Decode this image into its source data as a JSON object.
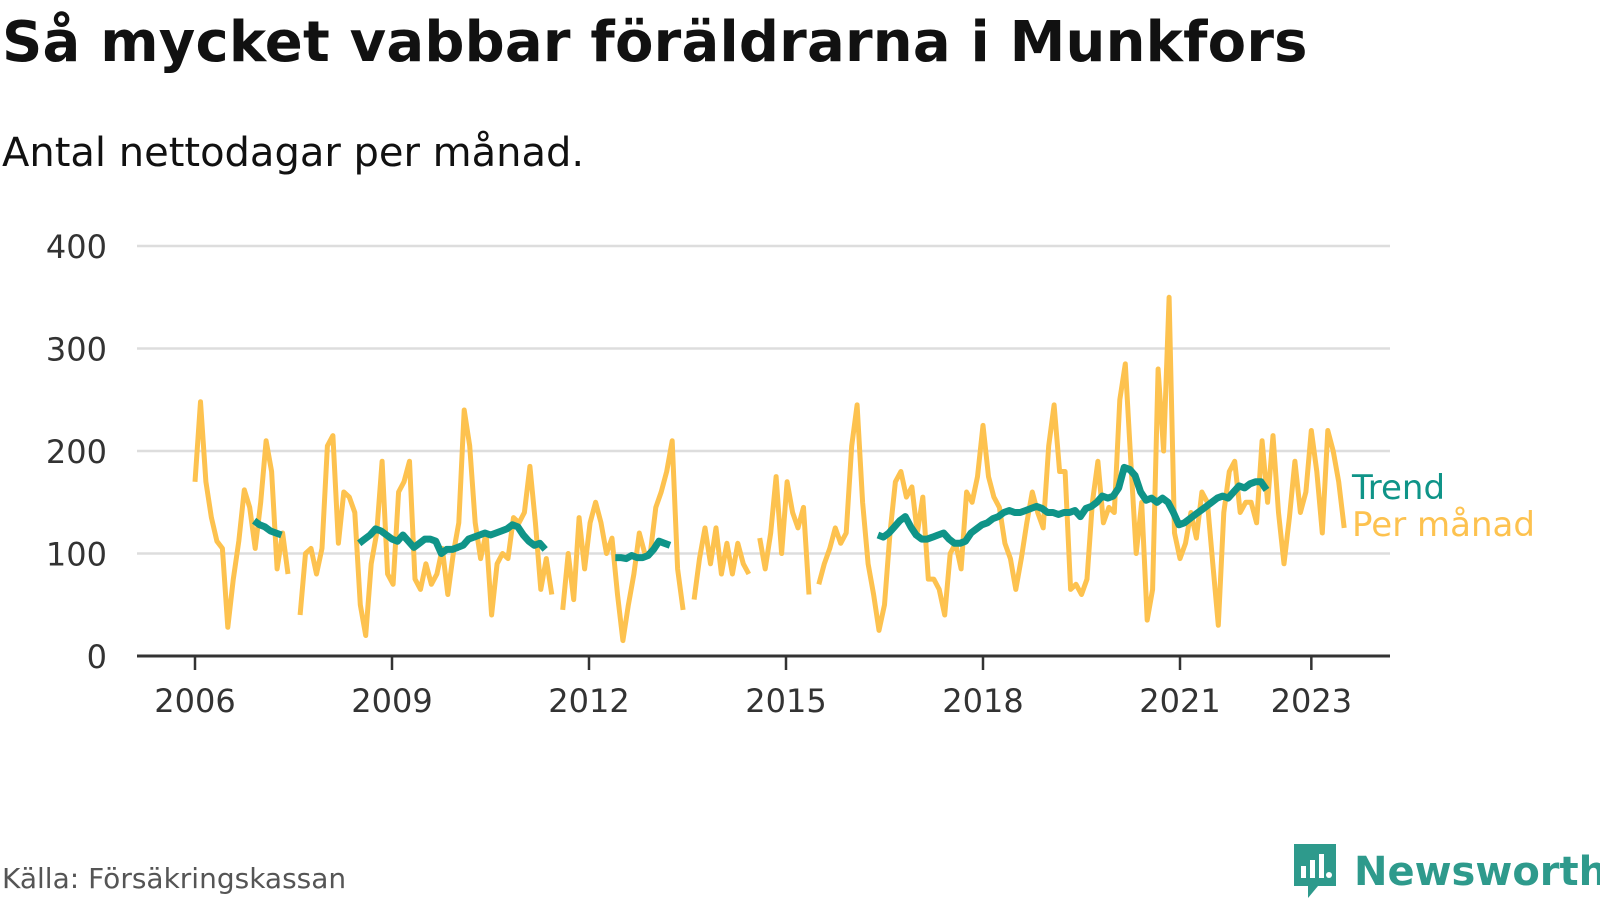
{
  "header": {
    "title": "Så mycket vabbar föräldrarna i Munkfors",
    "subtitle": "Antal nettodagar per månad."
  },
  "footer": {
    "source": "Källa: Försäkringskassan",
    "brand": "Newsworthy"
  },
  "colors": {
    "trend": "#0f9488",
    "monthly": "#fdc24f",
    "grid": "#dddddd",
    "axis": "#333333"
  },
  "chart_data": {
    "type": "line",
    "title": "Så mycket vabbar föräldrarna i Munkfors",
    "subtitle": "Antal nettodagar per månad.",
    "xlabel": "",
    "ylabel": "",
    "xlim": [
      2005.6,
      2024.6
    ],
    "ylim": [
      0,
      400
    ],
    "y_ticks": [
      0,
      100,
      200,
      300,
      400
    ],
    "x_ticks": [
      2006,
      2009,
      2012,
      2015,
      2018,
      2021,
      2023
    ],
    "grid": true,
    "legend": "right",
    "series": [
      {
        "name": "Per månad",
        "color": "#fdc24f",
        "segments": [
          {
            "start": 2006.0,
            "values": [
              170,
              248,
              170,
              135,
              112,
              105,
              28,
              75,
              112,
              162,
              145,
              105,
              150,
              210,
              180,
              85,
              120,
              80
            ]
          },
          {
            "start": 2007.6,
            "values": [
              40,
              100,
              105,
              80,
              105,
              205,
              215,
              110,
              160,
              155,
              140,
              50,
              20,
              90,
              120,
              190,
              80,
              70,
              160,
              170,
              190,
              75,
              65,
              90,
              70,
              80,
              105,
              60,
              100,
              130,
              240,
              205,
              130,
              95,
              120,
              40,
              90,
              100,
              95,
              135,
              130,
              140,
              185,
              130,
              65,
              95,
              60
            ]
          },
          {
            "start": 2011.6,
            "values": [
              45,
              100,
              55,
              135,
              85,
              130,
              150,
              130,
              100,
              115,
              60,
              15,
              50,
              80,
              120,
              100,
              100,
              145,
              160,
              180,
              210,
              85,
              45
            ]
          },
          {
            "start": 2013.6,
            "values": [
              55,
              95,
              125,
              90,
              125,
              80,
              110,
              80,
              110,
              90,
              80
            ]
          },
          {
            "start": 2014.6,
            "values": [
              115,
              85,
              120,
              175,
              100,
              170,
              140,
              125,
              145,
              60
            ]
          },
          {
            "start": 2015.5,
            "values": [
              70,
              90,
              105,
              125,
              110,
              120,
              205,
              245,
              150,
              90,
              60,
              25,
              50,
              120,
              170,
              180,
              155,
              165,
              120,
              155,
              75,
              75,
              65,
              40,
              100,
              110,
              85,
              160,
              150,
              175,
              225,
              175,
              155,
              145,
              110,
              95,
              65,
              95,
              130,
              160,
              140,
              125,
              205,
              245,
              180,
              180,
              65,
              70,
              60,
              75,
              150,
              190,
              130,
              145,
              140,
              250,
              285,
              190,
              100,
              150,
              35,
              65,
              280,
              200,
              350,
              120,
              95,
              110,
              140,
              115,
              160,
              150,
              90,
              30,
              140,
              180,
              190,
              140,
              150,
              150,
              130,
              210,
              150,
              215,
              140,
              90,
              135,
              190,
              140,
              160,
              220,
              180,
              120,
              220,
              200,
              170,
              125
            ]
          }
        ]
      },
      {
        "name": "Trend",
        "color": "#0f9488",
        "segments": [
          {
            "start": 2006.9,
            "values": [
              132,
              128,
              126,
              122,
              120,
              118
            ]
          },
          {
            "start": 2008.5,
            "values": [
              110,
              114,
              118,
              124,
              122,
              118,
              114,
              112,
              118,
              112,
              106,
              110,
              114,
              114,
              112,
              100,
              104,
              104,
              106,
              108,
              114,
              116,
              118,
              120,
              118,
              120,
              122,
              124,
              128,
              126,
              118,
              112,
              108,
              110,
              104
            ]
          },
          {
            "start": 2012.4,
            "values": [
              96,
              96,
              95,
              98,
              96,
              96,
              98,
              104,
              112,
              110,
              108
            ]
          },
          {
            "start": 2016.4,
            "values": [
              118,
              116,
              120,
              126,
              132,
              136,
              126,
              118,
              114,
              114,
              116,
              118,
              120,
              114,
              110,
              110,
              112,
              120,
              124,
              128,
              130,
              134,
              136,
              140,
              142,
              140,
              140,
              142,
              144,
              146,
              144,
              140,
              140,
              138,
              140,
              140,
              142,
              136,
              144,
              146,
              150,
              156,
              154,
              156,
              164,
              184,
              182,
              176,
              160,
              152,
              154,
              150,
              154,
              150,
              140,
              128,
              130,
              134,
              138,
              142,
              146,
              150,
              154,
              156,
              154,
              160,
              166,
              164,
              168,
              170,
              170,
              162
            ]
          }
        ]
      }
    ]
  }
}
